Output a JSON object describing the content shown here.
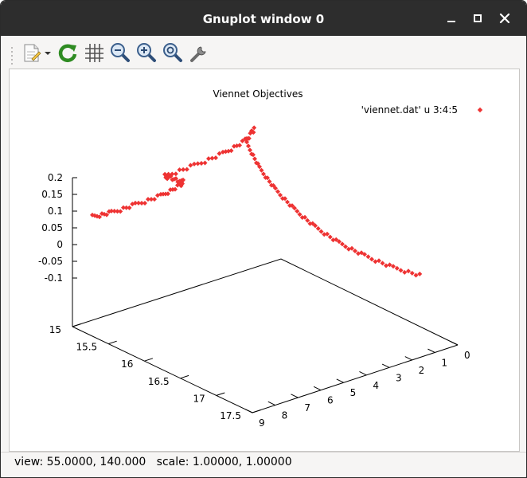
{
  "window": {
    "title": "Gnuplot window 0"
  },
  "status": {
    "text": "view: 55.0000, 140.000   scale: 1.00000, 1.00000"
  },
  "toolbar": {
    "items": [
      {
        "icon": "copy-to-clipboard-icon"
      },
      {
        "icon": "dropdown-arrow-icon"
      },
      {
        "icon": "replot-icon"
      },
      {
        "icon": "grid-icon"
      },
      {
        "icon": "zoom-out-icon"
      },
      {
        "icon": "zoom-in-icon"
      },
      {
        "icon": "zoom-reset-icon"
      },
      {
        "icon": "settings-wrench-icon"
      }
    ]
  },
  "chart_data": {
    "type": "scatter",
    "title": "Viennet Objectives",
    "legend": {
      "label": "'viennet.dat' u 3:4:5",
      "position": "top-right"
    },
    "color": "#ee3333",
    "axes": {
      "x": {
        "range": [
          0,
          9
        ],
        "ticks": [
          "0",
          "1",
          "2",
          "3",
          "4",
          "5",
          "6",
          "7",
          "8",
          "9"
        ]
      },
      "y": {
        "range": [
          15,
          17.5
        ],
        "ticks": [
          "15",
          "15.5",
          "16",
          "16.5",
          "17",
          "17.5"
        ]
      },
      "z": {
        "range": [
          -0.1,
          0.2
        ],
        "ticks": [
          "0.2",
          "0.15",
          "0.1",
          "0.05",
          "0",
          "-0.05",
          "-0.1"
        ]
      }
    },
    "view": {
      "rot_x": 55,
      "rot_z": 140,
      "scale": 1,
      "scale_z": 1
    },
    "series": [
      {
        "name": "'viennet.dat' u 3:4:5"
      }
    ]
  }
}
